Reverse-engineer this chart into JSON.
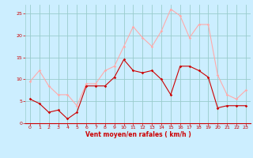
{
  "hours": [
    0,
    1,
    2,
    3,
    4,
    5,
    6,
    7,
    8,
    9,
    10,
    11,
    12,
    13,
    14,
    15,
    16,
    17,
    18,
    19,
    20,
    21,
    22,
    23
  ],
  "wind_avg": [
    5.5,
    4.5,
    2.5,
    3.0,
    1.0,
    2.5,
    8.5,
    8.5,
    8.5,
    10.5,
    14.5,
    12.0,
    11.5,
    12.0,
    10.0,
    6.5,
    13.0,
    13.0,
    12.0,
    10.5,
    3.5,
    4.0,
    4.0,
    4.0
  ],
  "wind_gust": [
    9.5,
    12.0,
    8.5,
    6.5,
    6.5,
    4.0,
    9.0,
    9.0,
    12.0,
    13.0,
    17.5,
    22.0,
    19.5,
    17.5,
    21.0,
    26.0,
    24.5,
    19.5,
    22.5,
    22.5,
    11.0,
    6.5,
    5.5,
    7.5
  ],
  "color_avg": "#cc0000",
  "color_gust": "#ffaaaa",
  "bg_color": "#cceeff",
  "grid_color": "#99cccc",
  "xlabel": "Vent moyen/en rafales ( km/h )",
  "xlabel_color": "#cc0000",
  "tick_color": "#cc0000",
  "ylim": [
    0,
    27
  ],
  "yticks": [
    0,
    5,
    10,
    15,
    20,
    25
  ],
  "xlim": [
    -0.5,
    23.5
  ],
  "xticks": [
    0,
    1,
    2,
    3,
    4,
    5,
    6,
    7,
    8,
    9,
    10,
    11,
    12,
    13,
    14,
    15,
    16,
    17,
    18,
    19,
    20,
    21,
    22,
    23
  ]
}
